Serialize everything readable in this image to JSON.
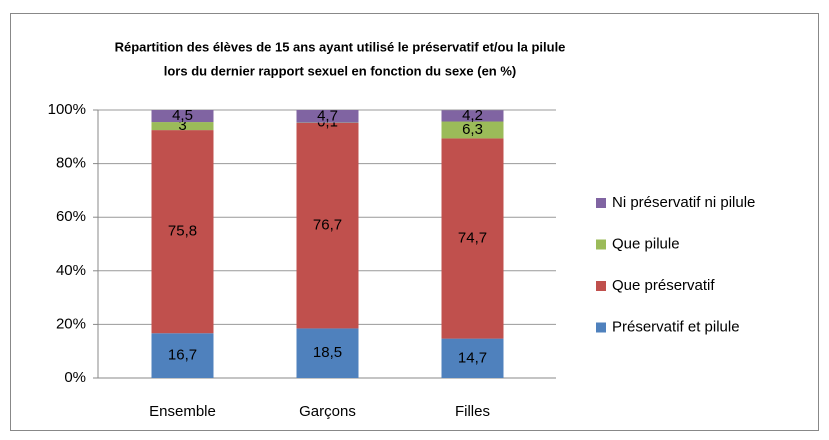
{
  "chart_data": {
    "type": "stacked_bar",
    "title": [
      "Répartition des  élèves de 15 ans ayant utilisé le préservatif et/ou la pilule",
      "lors du dernier rapport sexuel en fonction du sexe (en %)"
    ],
    "categories": [
      "Ensemble",
      "Garçons",
      "Filles"
    ],
    "series": [
      {
        "name": "Préservatif et pilule",
        "color": "#4f81bd",
        "values": [
          16.7,
          18.5,
          14.7
        ],
        "value_labels": [
          "16,7",
          "18,5",
          "14,7"
        ]
      },
      {
        "name": "Que préservatif",
        "color": "#c0504d",
        "values": [
          75.8,
          76.7,
          74.7
        ],
        "value_labels": [
          "75,8",
          "76,7",
          "74,7"
        ]
      },
      {
        "name": "Que pilule",
        "color": "#9bbb59",
        "values": [
          3,
          0.1,
          6.3
        ],
        "value_labels": [
          "3",
          "0,1",
          "6,3"
        ]
      },
      {
        "name": "Ni préservatif ni pilule",
        "color": "#8064a2",
        "values": [
          4.5,
          4.7,
          4.2
        ],
        "value_labels": [
          "4,5",
          "4,7",
          "4,2"
        ]
      }
    ],
    "ylim": [
      0,
      100
    ],
    "yticks": [
      {
        "value": 0,
        "label": "0%"
      },
      {
        "value": 20,
        "label": "20%"
      },
      {
        "value": 40,
        "label": "40%"
      },
      {
        "value": 60,
        "label": "60%"
      },
      {
        "value": 80,
        "label": "80%"
      },
      {
        "value": 100,
        "label": "100%"
      }
    ],
    "grid": true,
    "legend": "right"
  }
}
